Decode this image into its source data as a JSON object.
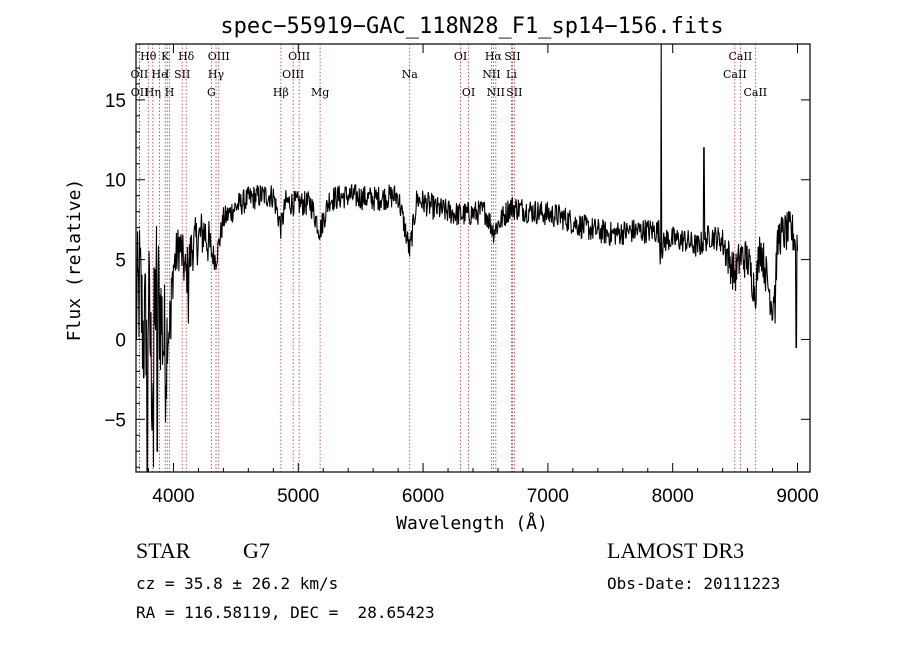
{
  "chart_data": {
    "type": "line",
    "title": "spec−55919−GAC_118N28_F1_sp14−156.fits",
    "xlabel": "Wavelength (Å)",
    "ylabel": "Flux (relative)",
    "xlim": [
      3700,
      9100
    ],
    "ylim": [
      -8.3,
      18.5
    ],
    "xticks": [
      4000,
      5000,
      6000,
      7000,
      8000,
      9000
    ],
    "yticks": [
      -5,
      0,
      5,
      10,
      15
    ],
    "tick_labels_x": [
      "4000",
      "5000",
      "6000",
      "7000",
      "8000",
      "9000"
    ],
    "tick_labels_y": [
      "−5",
      "0",
      "5",
      "10",
      "15"
    ],
    "line_color": "#000000",
    "marker_color": "#c83030",
    "spectrum_anchors": [
      [
        3700,
        1.5
      ],
      [
        3730,
        3.5
      ],
      [
        3760,
        0.0
      ],
      [
        3800,
        2.5
      ],
      [
        3830,
        -3.0
      ],
      [
        3860,
        4.0
      ],
      [
        3900,
        1.5
      ],
      [
        3934,
        -1.0
      ],
      [
        3968,
        1.0
      ],
      [
        4000,
        4.5
      ],
      [
        4050,
        6.0
      ],
      [
        4101,
        4.0
      ],
      [
        4150,
        5.8
      ],
      [
        4200,
        6.3
      ],
      [
        4250,
        6.8
      ],
      [
        4300,
        5.5
      ],
      [
        4340,
        5.0
      ],
      [
        4400,
        7.5
      ],
      [
        4500,
        8.3
      ],
      [
        4600,
        8.8
      ],
      [
        4700,
        9.0
      ],
      [
        4800,
        9.0
      ],
      [
        4861,
        7.0
      ],
      [
        4900,
        8.6
      ],
      [
        5000,
        8.5
      ],
      [
        5100,
        8.5
      ],
      [
        5175,
        6.8
      ],
      [
        5250,
        8.8
      ],
      [
        5400,
        9.0
      ],
      [
        5600,
        8.8
      ],
      [
        5800,
        9.0
      ],
      [
        5893,
        5.5
      ],
      [
        5950,
        8.8
      ],
      [
        6100,
        8.2
      ],
      [
        6300,
        7.8
      ],
      [
        6500,
        8.0
      ],
      [
        6563,
        6.8
      ],
      [
        6700,
        8.3
      ],
      [
        6900,
        8.0
      ],
      [
        7100,
        7.7
      ],
      [
        7300,
        7.0
      ],
      [
        7500,
        6.6
      ],
      [
        7700,
        6.8
      ],
      [
        7890,
        6.8
      ],
      [
        7900,
        5.5
      ],
      [
        7950,
        6.3
      ],
      [
        8100,
        6.2
      ],
      [
        8200,
        5.8
      ],
      [
        8300,
        6.5
      ],
      [
        8400,
        6.2
      ],
      [
        8498,
        4.0
      ],
      [
        8542,
        5.2
      ],
      [
        8600,
        5.0
      ],
      [
        8662,
        3.0
      ],
      [
        8700,
        6.0
      ],
      [
        8750,
        4.0
      ],
      [
        8800,
        2.0
      ],
      [
        8850,
        6.5
      ],
      [
        8950,
        6.8
      ],
      [
        9000,
        6.0
      ]
    ],
    "spikes": [
      [
        7908,
        18.5
      ],
      [
        8250,
        12.0
      ],
      [
        8820,
        1.0
      ],
      [
        8990,
        -0.5
      ],
      [
        3790,
        -8.3
      ],
      [
        3840,
        -8.0
      ],
      [
        3870,
        -7.0
      ],
      [
        3980,
        0.0
      ],
      [
        4120,
        1.0
      ]
    ],
    "lines": [
      {
        "label": "Hθ",
        "wl": 3798,
        "row": 0
      },
      {
        "label": "OII",
        "wl": 3727,
        "row": 1
      },
      {
        "label": "OII",
        "wl": 3729,
        "row": 2
      },
      {
        "label": "He",
        "wl": 3889,
        "row": 1
      },
      {
        "label": "Hη",
        "wl": 3835,
        "row": 2
      },
      {
        "label": "K",
        "wl": 3934,
        "row": 0
      },
      {
        "label": "I",
        "wl": 3950,
        "row": 1
      },
      {
        "label": "H",
        "wl": 3969,
        "row": 2
      },
      {
        "label": "Hδ",
        "wl": 4102,
        "row": 0
      },
      {
        "label": "SII",
        "wl": 4070,
        "row": 1
      },
      {
        "label": "OIII",
        "wl": 4363,
        "row": 0
      },
      {
        "label": "Hγ",
        "wl": 4341,
        "row": 1
      },
      {
        "label": "G",
        "wl": 4304,
        "row": 2
      },
      {
        "label": "Hβ",
        "wl": 4861,
        "row": 2
      },
      {
        "label": "OIII",
        "wl": 5007,
        "row": 0
      },
      {
        "label": "OIII",
        "wl": 4959,
        "row": 1
      },
      {
        "label": "Mg",
        "wl": 5175,
        "row": 2
      },
      {
        "label": "Na",
        "wl": 5893,
        "row": 1
      },
      {
        "label": "OI",
        "wl": 6300,
        "row": 0
      },
      {
        "label": "OI",
        "wl": 6364,
        "row": 2
      },
      {
        "label": "Hα",
        "wl": 6563,
        "row": 0
      },
      {
        "label": "NII",
        "wl": 6548,
        "row": 1
      },
      {
        "label": "NII",
        "wl": 6583,
        "row": 2
      },
      {
        "label": "SII",
        "wl": 6716,
        "row": 0
      },
      {
        "label": "Li",
        "wl": 6708,
        "row": 1
      },
      {
        "label": "SII",
        "wl": 6731,
        "row": 2
      },
      {
        "label": "CaII",
        "wl": 8542,
        "row": 0
      },
      {
        "label": "CaII",
        "wl": 8498,
        "row": 1
      },
      {
        "label": "CaII",
        "wl": 8662,
        "row": 2
      }
    ]
  },
  "info": {
    "class": "STAR",
    "subclass": "G7",
    "survey": "LAMOST DR3",
    "cz": "cz = 35.8 ± 26.2 km/s",
    "obsdate": "Obs-Date: 20111223",
    "radec": "RA = 116.58119, DEC =  28.65423"
  }
}
